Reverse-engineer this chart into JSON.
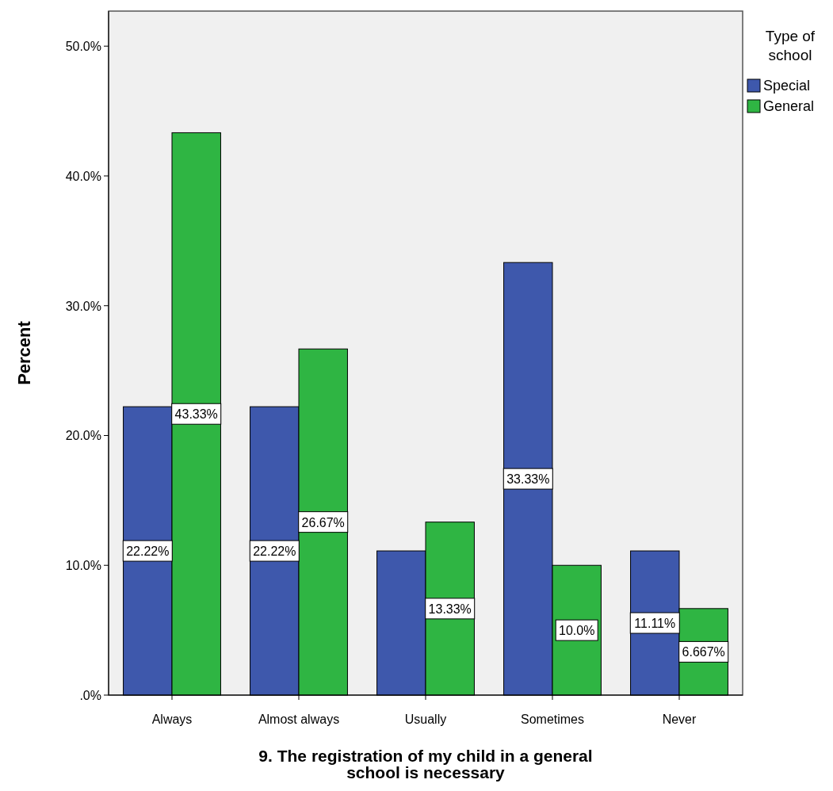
{
  "chart_data": {
    "type": "bar",
    "xlabel": "9. The registration of my child in a general school is necessary",
    "ylabel": "Percent",
    "legend_title": "Type of school",
    "categories": [
      "Always",
      "Almost always",
      "Usually",
      "Sometimes",
      "Never"
    ],
    "series": [
      {
        "name": "Special",
        "color": "#3e58ac",
        "values": [
          22.22,
          22.22,
          11.11,
          33.33,
          11.11
        ],
        "value_labels": [
          "22.22%",
          "22.22%",
          null,
          "33.33%",
          "11.11%"
        ]
      },
      {
        "name": "General",
        "color": "#2fb543",
        "values": [
          43.33,
          26.67,
          13.33,
          10.0,
          6.667
        ],
        "value_labels": [
          "43.33%",
          "26.67%",
          "13.33%",
          "10.0%",
          "6.667%"
        ]
      }
    ],
    "ylim": [
      0,
      52.7
    ],
    "yticks": [
      {
        "value": 0,
        "label": ".0%"
      },
      {
        "value": 10,
        "label": "10.0%"
      },
      {
        "value": 20,
        "label": "20.0%"
      },
      {
        "value": 30,
        "label": "30.0%"
      },
      {
        "value": 40,
        "label": "40.0%"
      },
      {
        "value": 50,
        "label": "50.0%"
      }
    ],
    "legend": "right",
    "grid": false
  }
}
